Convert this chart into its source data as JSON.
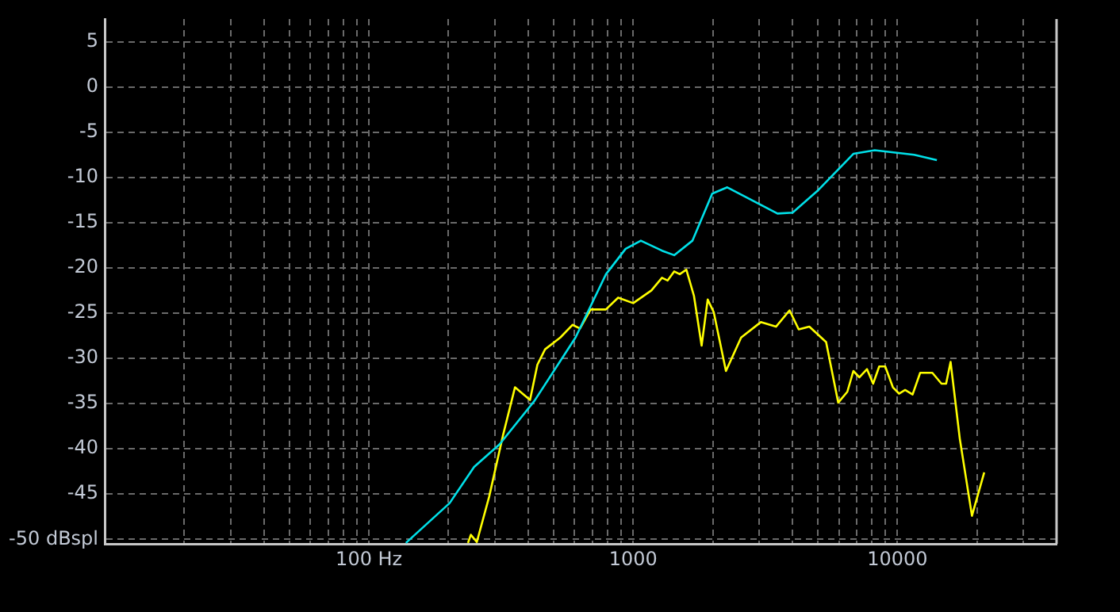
{
  "chart_data": {
    "type": "line",
    "log": "x",
    "grid": true,
    "marker": "none",
    "xlim": [
      10,
      40000
    ],
    "ylim": [
      -50.5,
      7.5
    ],
    "xticks": [
      {
        "value": 20,
        "label": null
      },
      {
        "value": 30,
        "label": null
      },
      {
        "value": 40,
        "label": null
      },
      {
        "value": 50,
        "label": null
      },
      {
        "value": 60,
        "label": null
      },
      {
        "value": 70,
        "label": null
      },
      {
        "value": 80,
        "label": null
      },
      {
        "value": 90,
        "label": null
      },
      {
        "value": 100,
        "label": "100 Hz"
      },
      {
        "value": 200,
        "label": null
      },
      {
        "value": 300,
        "label": null
      },
      {
        "value": 400,
        "label": null
      },
      {
        "value": 500,
        "label": null
      },
      {
        "value": 600,
        "label": null
      },
      {
        "value": 700,
        "label": null
      },
      {
        "value": 800,
        "label": null
      },
      {
        "value": 900,
        "label": null
      },
      1000,
      {
        "value": 2000,
        "label": null
      },
      {
        "value": 3000,
        "label": null
      },
      {
        "value": 4000,
        "label": null
      },
      {
        "value": 5000,
        "label": null
      },
      {
        "value": 6000,
        "label": null
      },
      {
        "value": 7000,
        "label": null
      },
      {
        "value": 8000,
        "label": null
      },
      {
        "value": 9000,
        "label": null
      },
      10000,
      {
        "value": 20000,
        "label": null
      },
      {
        "value": 30000,
        "label": null
      }
    ],
    "yticks": [
      {
        "value": -50,
        "label": "-50 dBspl"
      },
      -45,
      -40,
      -35,
      -30,
      -25,
      -20,
      -15,
      -10,
      -5,
      0,
      5
    ],
    "series": [
      {
        "color": "#00e0e8",
        "x": [
          138,
          202,
          250,
          312,
          423,
          605,
          789,
          936,
          1069,
          1285,
          1429,
          1675,
          1991,
          2270,
          3516,
          4010,
          5020,
          6810,
          8200,
          11570,
          14100
        ],
        "values": [
          -50.4,
          -46.0,
          -42.0,
          -39.5,
          -34.7,
          -27.7,
          -20.7,
          -17.9,
          -17.0,
          -18.1,
          -18.6,
          -17.0,
          -11.8,
          -11.1,
          -14.0,
          -13.9,
          -11.4,
          -7.4,
          -7.0,
          -7.5,
          -8.1
        ]
      },
      {
        "color": "#ffff00",
        "x": [
          237,
          243,
          256,
          285,
          321,
          357,
          407,
          434,
          464,
          530,
          589,
          629,
          690,
          788,
          877,
          1000,
          1172,
          1285,
          1350,
          1429,
          1500,
          1589,
          1698,
          1815,
          1914,
          2017,
          2244,
          2561,
          3040,
          3470,
          3906,
          4230,
          4640,
          5370,
          5970,
          6460,
          6810,
          7180,
          7670,
          8090,
          8530,
          8990,
          9610,
          10140,
          10690,
          11410,
          12190,
          13550,
          14680,
          15280,
          15890,
          17220,
          19140,
          21300
        ],
        "values": [
          -50.4,
          -49.5,
          -50.3,
          -45.3,
          -38.6,
          -33.2,
          -34.6,
          -30.7,
          -29.0,
          -27.7,
          -26.3,
          -26.7,
          -24.6,
          -24.6,
          -23.3,
          -23.9,
          -22.5,
          -21.1,
          -21.4,
          -20.4,
          -20.7,
          -20.2,
          -23.1,
          -28.6,
          -23.5,
          -24.9,
          -31.4,
          -27.7,
          -26.0,
          -26.5,
          -24.7,
          -26.8,
          -26.5,
          -28.2,
          -34.9,
          -33.7,
          -31.4,
          -32.1,
          -31.2,
          -32.8,
          -30.9,
          -30.9,
          -33.2,
          -33.9,
          -33.5,
          -34.0,
          -31.6,
          -31.6,
          -32.8,
          -32.8,
          -30.4,
          -38.9,
          -47.4,
          -42.6
        ]
      }
    ]
  }
}
